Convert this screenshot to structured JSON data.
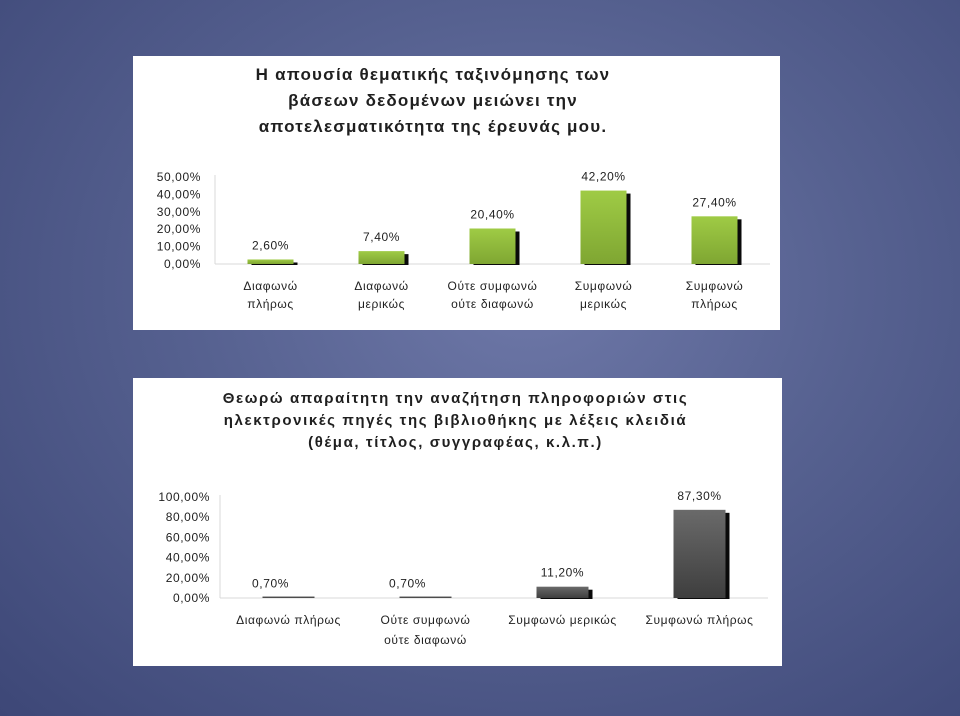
{
  "chart_data": [
    {
      "type": "bar",
      "title": "Η απουσία θεματικής ταξινόμησης των βάσεων δεδομένων μειώνει την αποτελεσματικότητα της έρευνάς μου.",
      "categories": [
        "Διαφωνώ πλήρως",
        "Διαφωνώ μερικώς",
        "Ούτε συμφωνώ ούτε διαφωνώ",
        "Συμφωνώ μερικώς",
        "Συμφωνώ πλήρως"
      ],
      "category_lines": [
        [
          "Διαφωνώ",
          "πλήρως"
        ],
        [
          "Διαφωνώ",
          "μερικώς"
        ],
        [
          "Ούτε συμφωνώ",
          "ούτε διαφωνώ"
        ],
        [
          "Συμφωνώ",
          "μερικώς"
        ],
        [
          "Συμφωνώ",
          "πλήρως"
        ]
      ],
      "values": [
        2.6,
        7.4,
        20.4,
        42.2,
        27.4
      ],
      "data_labels": [
        "2,60%",
        "7,40%",
        "20,40%",
        "42,20%",
        "27,40%"
      ],
      "yticks": [
        "0,00%",
        "10,00%",
        "20,00%",
        "30,00%",
        "40,00%",
        "50,00%"
      ],
      "ylim": [
        0,
        50
      ],
      "grid": false,
      "bar_color": "#8db63c"
    },
    {
      "type": "bar",
      "title": "Θεωρώ απαραίτητη την αναζήτηση πληροφοριών στις ηλεκτρονικές πηγές της βιβλιοθήκης με λέξεις κλειδιά (θέμα, τίτλος, συγγραφέας, κ.λ.π.)",
      "categories": [
        "Διαφωνώ πλήρως",
        "Ούτε συμφωνώ ούτε διαφωνώ",
        "Συμφωνώ μερικώς",
        "Συμφωνώ πλήρως"
      ],
      "category_lines": [
        [
          "Διαφωνώ πλήρως"
        ],
        [
          "Ούτε συμφωνώ",
          "ούτε διαφωνώ"
        ],
        [
          "Συμφωνώ μερικώς"
        ],
        [
          "Συμφωνώ πλήρως"
        ]
      ],
      "values": [
        0.7,
        0.7,
        11.2,
        87.3
      ],
      "data_labels": [
        "0,70%",
        "0,70%",
        "11,20%",
        "87,30%"
      ],
      "yticks": [
        "0,00%",
        "20,00%",
        "40,00%",
        "60,00%",
        "80,00%",
        "100,00%"
      ],
      "ylim": [
        0,
        100
      ],
      "grid": false,
      "bar_color": "#5a5a5a"
    }
  ],
  "titles": {
    "chart1": [
      "Η απουσία θεματικής ταξινόμησης των",
      "βάσεων δεδομένων μειώνει την",
      "αποτελεσματικότητα της έρευνάς μου."
    ],
    "chart2": [
      "Θεωρώ απαραίτητη την αναζήτηση πληροφοριών στις",
      "ηλεκτρονικές πηγές της βιβλιοθήκης με λέξεις κλειδιά",
      "(θέμα, τίτλος, συγγραφέας, κ.λ.π.)"
    ]
  }
}
